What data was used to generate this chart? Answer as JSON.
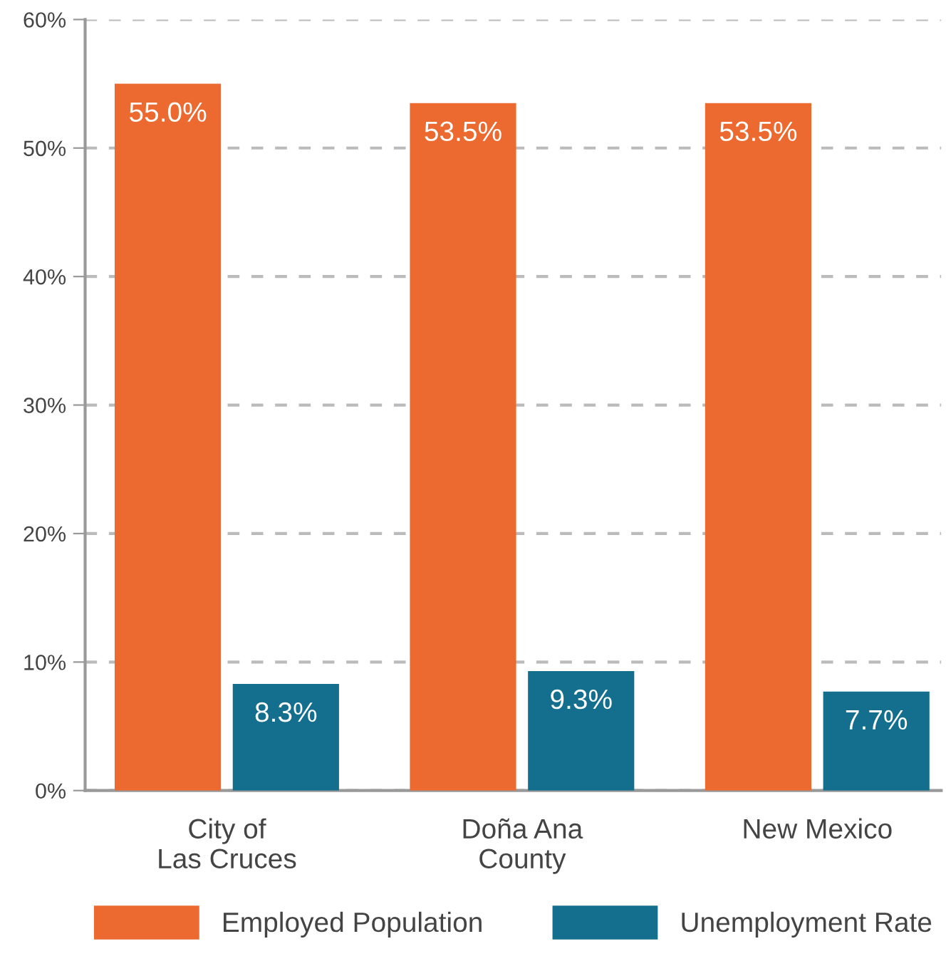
{
  "chart_data": {
    "type": "bar",
    "categories": [
      "City of\nLas Cruces",
      "Doña Ana\nCounty",
      "New Mexico"
    ],
    "series": [
      {
        "name": "Employed Population",
        "color": "#ec6a30",
        "values": [
          55.0,
          53.5,
          53.5
        ],
        "value_labels": [
          "55.0%",
          "53.5%",
          "53.5%"
        ]
      },
      {
        "name": "Unemployment Rate",
        "color": "#146f8f",
        "values": [
          8.3,
          9.3,
          7.7
        ],
        "value_labels": [
          "8.3%",
          "9.3%",
          "7.7%"
        ]
      }
    ],
    "ylim": [
      0,
      60
    ],
    "yticks": [
      {
        "value": 0,
        "label": "0%"
      },
      {
        "value": 10,
        "label": "10%"
      },
      {
        "value": 20,
        "label": "20%"
      },
      {
        "value": 30,
        "label": "30%"
      },
      {
        "value": 40,
        "label": "40%"
      },
      {
        "value": 50,
        "label": "50%"
      },
      {
        "value": 60,
        "label": "60%"
      }
    ],
    "grid": "y",
    "legend": "bottom"
  }
}
